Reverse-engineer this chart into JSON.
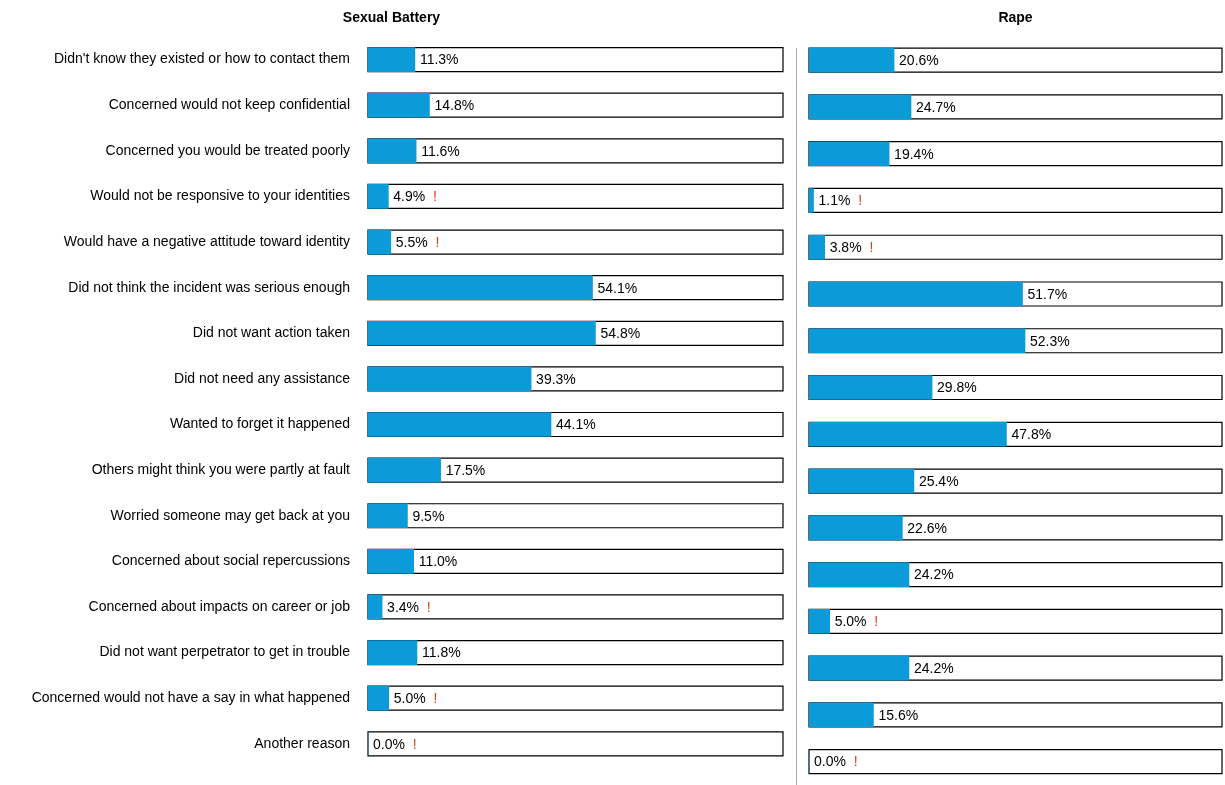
{
  "chart_data": [
    {
      "type": "bar",
      "orientation": "horizontal",
      "title": "Sexual Battery",
      "tick_labels": "y",
      "xlim": [
        0,
        100
      ],
      "color": "#0a9bd8",
      "categories": [
        "Didn't know they existed or how to contact them",
        "Concerned would not keep confidential",
        "Concerned you would be treated poorly",
        "Would not be responsive to your identities",
        "Would have a negative attitude toward identity",
        "Did not think the incident was serious enough",
        "Did not want action taken",
        "Did not need any assistance",
        "Wanted to forget it happened",
        "Others might think you were partly at fault",
        "Worried someone may get back at you",
        "Concerned about social repercussions",
        "Concerned about impacts on career or job",
        "Did not want perpetrator to get in trouble",
        "Concerned would not have a say in what happened",
        "Another reason"
      ],
      "values": [
        11.3,
        14.8,
        11.6,
        4.9,
        5.5,
        54.1,
        54.8,
        39.3,
        44.1,
        17.5,
        9.5,
        11.0,
        3.4,
        11.8,
        5.0,
        0.0
      ],
      "value_labels": [
        "11.3%",
        "14.8%",
        "11.6%",
        "4.9% !",
        "5.5% !",
        "54.1%",
        "54.8%",
        "39.3%",
        "44.1%",
        "17.5%",
        "9.5%",
        "11.0%",
        "3.4% !",
        "11.8%",
        "5.0% !",
        "0.0% !"
      ]
    },
    {
      "type": "bar",
      "orientation": "horizontal",
      "title": "Rape",
      "tick_labels": false,
      "xlim": [
        0,
        100
      ],
      "color": "#0a9bd8",
      "categories": [
        null,
        null,
        null,
        null,
        null,
        null,
        null,
        null,
        null,
        null,
        null,
        null,
        null,
        null,
        null,
        null
      ],
      "values": [
        20.6,
        24.7,
        19.4,
        1.1,
        3.8,
        51.7,
        52.3,
        29.8,
        47.8,
        25.4,
        22.6,
        24.2,
        5.0,
        24.2,
        15.6,
        0.0
      ],
      "value_labels": [
        "20.6%",
        "24.7%",
        "19.4%",
        "1.1% !",
        "3.8% !",
        "51.7%",
        "52.3%",
        "29.8%",
        "47.8%",
        "25.4%",
        "22.6%",
        "24.2%",
        "5.0% !",
        "24.2%",
        "15.6%",
        "0.0% !"
      ]
    }
  ]
}
